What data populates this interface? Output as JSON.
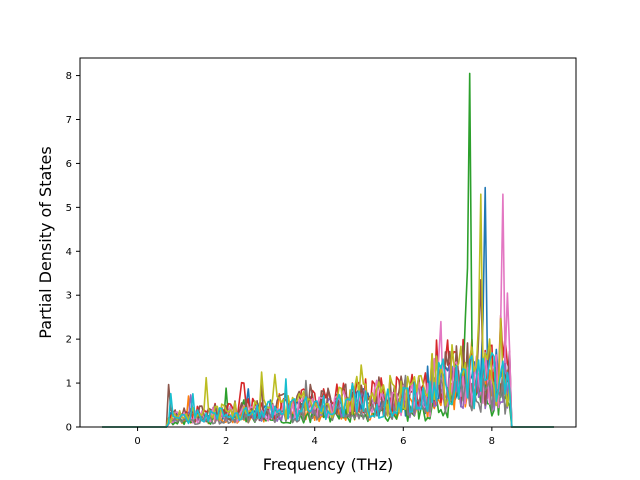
{
  "chart_data": {
    "type": "line",
    "xlabel": "Frequency (THz)",
    "ylabel": "Partial Density of States",
    "xlim": [
      -1.3,
      9.9
    ],
    "ylim": [
      0,
      8.4
    ],
    "xticks": [
      0,
      2,
      4,
      6,
      8
    ],
    "yticks": [
      0,
      1,
      2,
      3,
      4,
      5,
      6,
      7,
      8
    ],
    "grid": false,
    "series_count": 10,
    "colors": [
      "#1f77b4",
      "#ff7f0e",
      "#2ca02c",
      "#d62728",
      "#9467bd",
      "#8c564b",
      "#e377c2",
      "#7f7f7f",
      "#bcbd22",
      "#17becf"
    ],
    "notable_peaks": [
      {
        "x": 7.5,
        "y": 8.05,
        "color": "#2ca02c"
      },
      {
        "x": 7.85,
        "y": 5.45,
        "color": "#1f77b4"
      },
      {
        "x": 7.75,
        "y": 5.3,
        "color": "#bcbd22"
      },
      {
        "x": 8.25,
        "y": 5.3,
        "color": "#e377c2"
      },
      {
        "x": 8.35,
        "y": 3.05,
        "color": "#e377c2"
      },
      {
        "x": 7.75,
        "y": 3.35,
        "color": "#8c564b"
      },
      {
        "x": 6.85,
        "y": 2.4,
        "color": "#e377c2"
      },
      {
        "x": 7.4,
        "y": 2.45,
        "color": "#2ca02c"
      }
    ]
  }
}
